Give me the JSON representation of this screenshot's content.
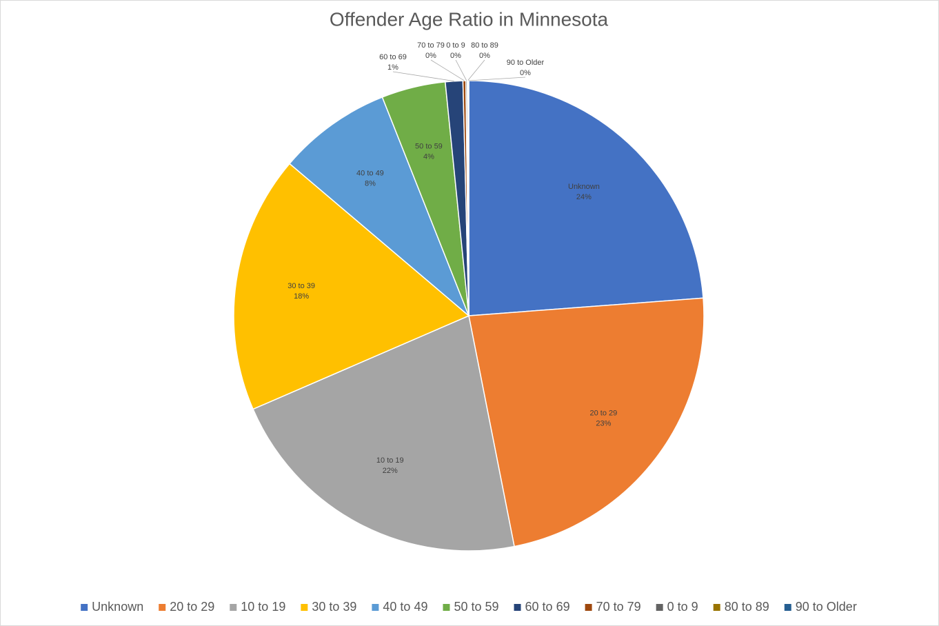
{
  "chart_data": {
    "type": "pie",
    "title": "Offender Age Ratio in Minnesota",
    "categories": [
      "Unknown",
      "20 to 29",
      "10 to 19",
      "30 to 39",
      "40 to 49",
      "50 to 59",
      "60 to 69",
      "70 to 79",
      "0 to 9",
      "80 to 89",
      "90 to Older"
    ],
    "values": [
      23.8,
      23.1,
      21.6,
      17.7,
      7.8,
      4.4,
      1.2,
      0.2,
      0.1,
      0.05,
      0.05
    ],
    "value_labels": [
      "24%",
      "23%",
      "22%",
      "18%",
      "8%",
      "4%",
      "1%",
      "0%",
      "0%",
      "0%",
      "0%"
    ],
    "colors": [
      "#4472c4",
      "#ed7d31",
      "#a5a5a5",
      "#ffc000",
      "#5b9bd5",
      "#70ad47",
      "#264478",
      "#9e480e",
      "#636363",
      "#997300",
      "#255e91"
    ],
    "legend": "bottom"
  }
}
